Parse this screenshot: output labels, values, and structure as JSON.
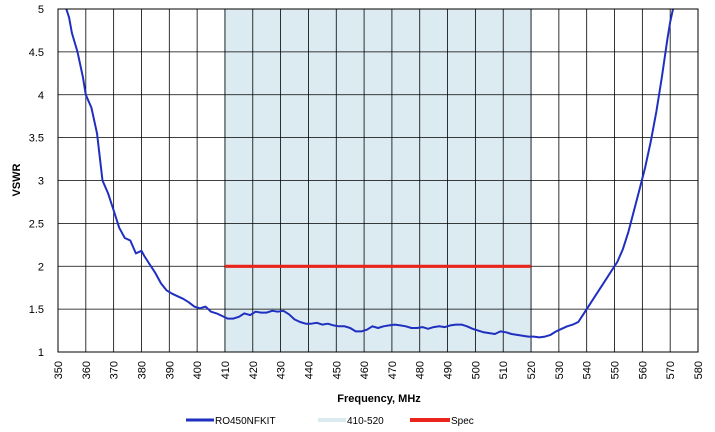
{
  "chart_data": {
    "type": "line",
    "title": "",
    "xlabel": "Frequency, MHz",
    "ylabel": "VSWR",
    "xlim": [
      350,
      580
    ],
    "ylim": [
      1,
      5
    ],
    "xticks": [
      350,
      360,
      370,
      380,
      390,
      400,
      410,
      420,
      430,
      440,
      450,
      460,
      470,
      480,
      490,
      500,
      510,
      520,
      530,
      540,
      550,
      560,
      570,
      580
    ],
    "yticks": [
      1,
      1.5,
      2,
      2.5,
      3,
      3.5,
      4,
      4.5,
      5
    ],
    "ytick_labels": [
      "1",
      "1.5",
      "2",
      "2.5",
      "3",
      "3.5",
      "4",
      "4.5",
      "5"
    ],
    "grid": true,
    "legend_position": "bottom",
    "series": [
      {
        "name": "RO450NFKIT",
        "kind": "line",
        "color": "#1f2fbf",
        "x": [
          353,
          354,
          355,
          357,
          359,
          360,
          362,
          364,
          366,
          368,
          370,
          372,
          374,
          376,
          378,
          380,
          381,
          383,
          385,
          387,
          389,
          391,
          393,
          395,
          397,
          399,
          401,
          403,
          405,
          407,
          409,
          411,
          413,
          415,
          417,
          419,
          421,
          423,
          425,
          427,
          429,
          431,
          433,
          435,
          437,
          439,
          441,
          443,
          445,
          447,
          449,
          451,
          453,
          455,
          457,
          459,
          461,
          463,
          465,
          467,
          469,
          471,
          473,
          475,
          477,
          479,
          481,
          483,
          485,
          487,
          489,
          491,
          493,
          495,
          497,
          499,
          501,
          503,
          505,
          507,
          509,
          511,
          513,
          515,
          517,
          519,
          521,
          523,
          525,
          527,
          529,
          531,
          533,
          535,
          537,
          539,
          541,
          543,
          545,
          547,
          549,
          551,
          553,
          555,
          557,
          559,
          561,
          563,
          565,
          567,
          569,
          570,
          571,
          571.5
        ],
        "y": [
          5.0,
          4.9,
          4.72,
          4.5,
          4.2,
          4.0,
          3.85,
          3.55,
          3.0,
          2.85,
          2.65,
          2.45,
          2.33,
          2.3,
          2.15,
          2.18,
          2.12,
          2.02,
          1.92,
          1.8,
          1.72,
          1.68,
          1.65,
          1.62,
          1.58,
          1.53,
          1.51,
          1.53,
          1.47,
          1.45,
          1.42,
          1.39,
          1.39,
          1.41,
          1.45,
          1.43,
          1.47,
          1.46,
          1.46,
          1.48,
          1.47,
          1.48,
          1.44,
          1.38,
          1.35,
          1.33,
          1.33,
          1.34,
          1.32,
          1.33,
          1.31,
          1.3,
          1.3,
          1.28,
          1.24,
          1.24,
          1.26,
          1.3,
          1.28,
          1.3,
          1.31,
          1.32,
          1.31,
          1.3,
          1.28,
          1.28,
          1.29,
          1.27,
          1.29,
          1.3,
          1.29,
          1.31,
          1.32,
          1.32,
          1.3,
          1.27,
          1.25,
          1.23,
          1.22,
          1.21,
          1.24,
          1.23,
          1.21,
          1.2,
          1.19,
          1.18,
          1.18,
          1.17,
          1.18,
          1.2,
          1.24,
          1.27,
          1.3,
          1.32,
          1.35,
          1.45,
          1.55,
          1.65,
          1.75,
          1.85,
          1.95,
          2.05,
          2.2,
          2.4,
          2.65,
          2.9,
          3.15,
          3.45,
          3.8,
          4.2,
          4.65,
          4.85,
          5.0,
          5.1
        ]
      },
      {
        "name": "410-520",
        "kind": "band",
        "color": "#dcebf1",
        "x_range": [
          410,
          520
        ],
        "y_range": [
          1,
          5
        ]
      },
      {
        "name": "Spec",
        "kind": "line",
        "color": "#e8241c",
        "x": [
          410,
          520
        ],
        "y": [
          2,
          2
        ]
      }
    ]
  }
}
